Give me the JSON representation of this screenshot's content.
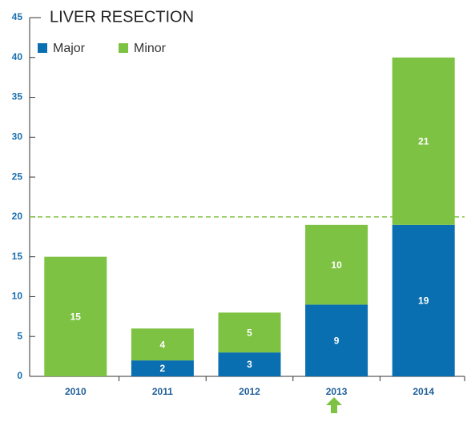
{
  "chart_data": {
    "type": "stacked_bar",
    "title": "LIVER RESECTION",
    "categories": [
      "2010",
      "2011",
      "2012",
      "2013",
      "2014"
    ],
    "series": [
      {
        "name": "Major",
        "color": "#0a6fb0",
        "values": [
          null,
          2,
          3,
          9,
          19
        ]
      },
      {
        "name": "Minor",
        "color": "#7dc243",
        "values": [
          15,
          4,
          5,
          10,
          21
        ]
      }
    ],
    "ylim": [
      0,
      45
    ],
    "yticks": [
      0,
      5,
      10,
      15,
      20,
      25,
      30,
      35,
      40,
      45
    ],
    "reference_line": {
      "value": 20,
      "color": "#7dc243",
      "style": "dashed"
    },
    "legend": "top-left"
  }
}
